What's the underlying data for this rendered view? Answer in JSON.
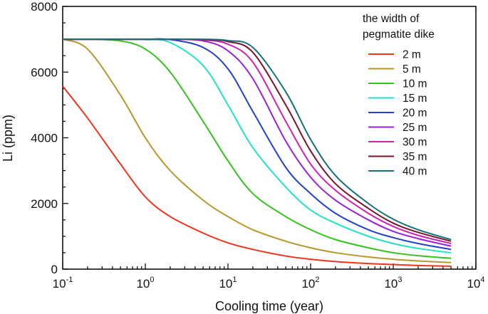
{
  "chart_data": {
    "type": "line",
    "title": "",
    "xlabel": "Cooling time (year)",
    "ylabel": "Li (ppm)",
    "xscale": "log",
    "xlim": [
      0.1,
      10000
    ],
    "ylim": [
      0,
      8000
    ],
    "x_ticks": [
      {
        "base": "10",
        "exp": "-1"
      },
      {
        "base": "10",
        "exp": "0"
      },
      {
        "base": "10",
        "exp": "1"
      },
      {
        "base": "10",
        "exp": "2"
      },
      {
        "base": "10",
        "exp": "3"
      },
      {
        "base": "10",
        "exp": "4"
      }
    ],
    "y_ticks": [
      "0",
      "2000",
      "4000",
      "6000",
      "8000"
    ],
    "legend": {
      "title_line1": "the width of",
      "title_line2": "pegmatite dike",
      "placement": "top-right"
    },
    "x": [
      0.1,
      0.2,
      0.5,
      1,
      2,
      5,
      10,
      20,
      50,
      100,
      200,
      500,
      1000,
      2000,
      5000
    ],
    "series": [
      {
        "name": "2 m",
        "color": "#f0341c",
        "values": [
          5570,
          4600,
          3200,
          2200,
          1600,
          1100,
          800,
          600,
          400,
          300,
          230,
          170,
          140,
          110,
          90
        ]
      },
      {
        "name": "5 m",
        "color": "#b8962a",
        "values": [
          7000,
          6700,
          5300,
          4000,
          3000,
          2100,
          1600,
          1200,
          850,
          650,
          500,
          370,
          300,
          250,
          200
        ]
      },
      {
        "name": "10 m",
        "color": "#35c21e",
        "values": [
          7000,
          7000,
          6950,
          6700,
          6000,
          4500,
          3300,
          2300,
          1600,
          1200,
          900,
          650,
          500,
          410,
          330
        ]
      },
      {
        "name": "15 m",
        "color": "#22e0c9",
        "values": [
          7000,
          7000,
          7000,
          6990,
          6900,
          6200,
          5000,
          3700,
          2500,
          1800,
          1400,
          1000,
          780,
          630,
          500
        ]
      },
      {
        "name": "20 m",
        "color": "#1f43c8",
        "values": [
          7000,
          7000,
          7000,
          7000,
          6990,
          6750,
          6100,
          4800,
          3100,
          2300,
          1700,
          1200,
          960,
          780,
          600
        ]
      },
      {
        "name": "25 m",
        "color": "#9a20d6",
        "values": [
          7000,
          7000,
          7000,
          7000,
          7000,
          6950,
          6650,
          5800,
          3900,
          2800,
          2100,
          1500,
          1150,
          930,
          700
        ]
      },
      {
        "name": "30 m",
        "color": "#d020b3",
        "values": [
          7000,
          7000,
          7000,
          7000,
          7000,
          6980,
          6850,
          6300,
          4500,
          3200,
          2400,
          1700,
          1300,
          1030,
          780
        ]
      },
      {
        "name": "35 m",
        "color": "#7a1528",
        "values": [
          7000,
          7000,
          7000,
          7000,
          7000,
          6990,
          6930,
          6600,
          5000,
          3600,
          2600,
          1850,
          1400,
          1120,
          850
        ]
      },
      {
        "name": "40 m",
        "color": "#16717a",
        "values": [
          7000,
          7000,
          7000,
          7000,
          7000,
          7000,
          6960,
          6750,
          5400,
          3950,
          2850,
          2000,
          1520,
          1200,
          900
        ]
      }
    ]
  }
}
